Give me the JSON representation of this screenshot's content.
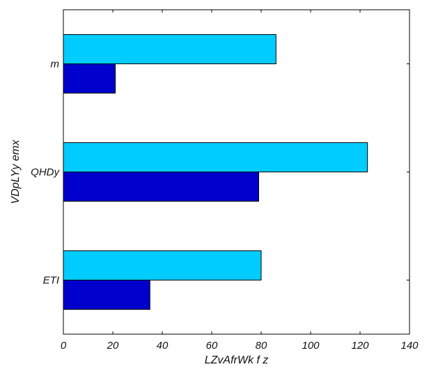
{
  "chart_data": {
    "type": "bar",
    "orientation": "horizontal",
    "categories": [
      "m",
      "QHDy",
      "ETI"
    ],
    "series": [
      {
        "color": "#00ccff",
        "values": [
          86,
          123,
          80
        ]
      },
      {
        "color": "#0000cc",
        "values": [
          21,
          79,
          35
        ]
      }
    ],
    "xlabel": "LZvAfrWk f z",
    "ylabel": "VDpLYy emx",
    "xlim": [
      0,
      140
    ],
    "xticks": [
      0,
      20,
      40,
      60,
      80,
      100,
      120,
      140
    ],
    "grid": false,
    "legend": "none"
  }
}
